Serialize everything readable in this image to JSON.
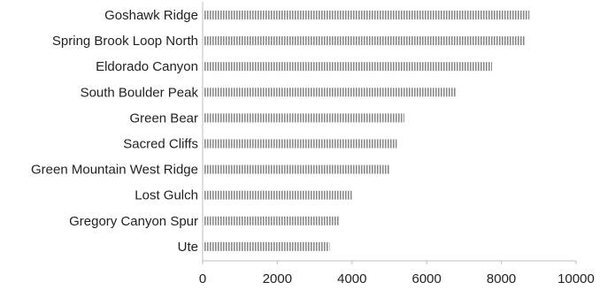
{
  "chart_data": {
    "type": "bar",
    "orientation": "horizontal",
    "title": "",
    "xlabel": "",
    "ylabel": "",
    "categories": [
      "Goshawk Ridge",
      "Spring Brook Loop North",
      "Eldorado Canyon",
      "South Boulder Peak",
      "Green Bear",
      "Sacred Cliffs",
      "Green Mountain West Ridge",
      "Lost Gulch",
      "Gregory Canyon Spur",
      "Ute"
    ],
    "values": [
      8750,
      8650,
      7750,
      6800,
      5400,
      5200,
      5000,
      4000,
      3650,
      3400
    ],
    "xlim": [
      0,
      10000
    ],
    "xticks": [
      0,
      2000,
      4000,
      6000,
      8000,
      10000
    ],
    "grid": false,
    "legend": "none",
    "colors": {
      "bar_fill": "#8a8a8a",
      "bar_stripe": "#ffffff",
      "axis": "#bfbfbf",
      "text": "#222222"
    }
  }
}
